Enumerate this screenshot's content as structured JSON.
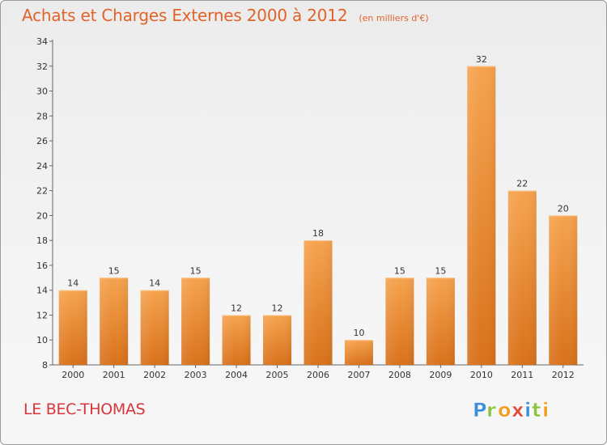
{
  "header": {
    "title": "Achats et Charges Externes 2000 à 2012",
    "subtitle": "(en milliers d'€)"
  },
  "footer": {
    "place_name": "LE BEC-THOMAS",
    "brand": "Proxiti"
  },
  "colors": {
    "bar_top": "#f6a34e",
    "bar_bottom": "#d9711a",
    "title": "#e0632a",
    "place_name": "#d9353c"
  },
  "chart_data": {
    "type": "bar",
    "categories": [
      "2000",
      "2001",
      "2002",
      "2003",
      "2004",
      "2005",
      "2006",
      "2007",
      "2008",
      "2009",
      "2010",
      "2011",
      "2012"
    ],
    "values": [
      14,
      15,
      14,
      15,
      12,
      12,
      18,
      10,
      15,
      15,
      32,
      22,
      20
    ],
    "ylim": [
      8,
      34
    ],
    "yticks": [
      8,
      10,
      12,
      14,
      16,
      18,
      20,
      22,
      24,
      26,
      28,
      30,
      32,
      34
    ],
    "grid": false,
    "data_labels": true
  }
}
